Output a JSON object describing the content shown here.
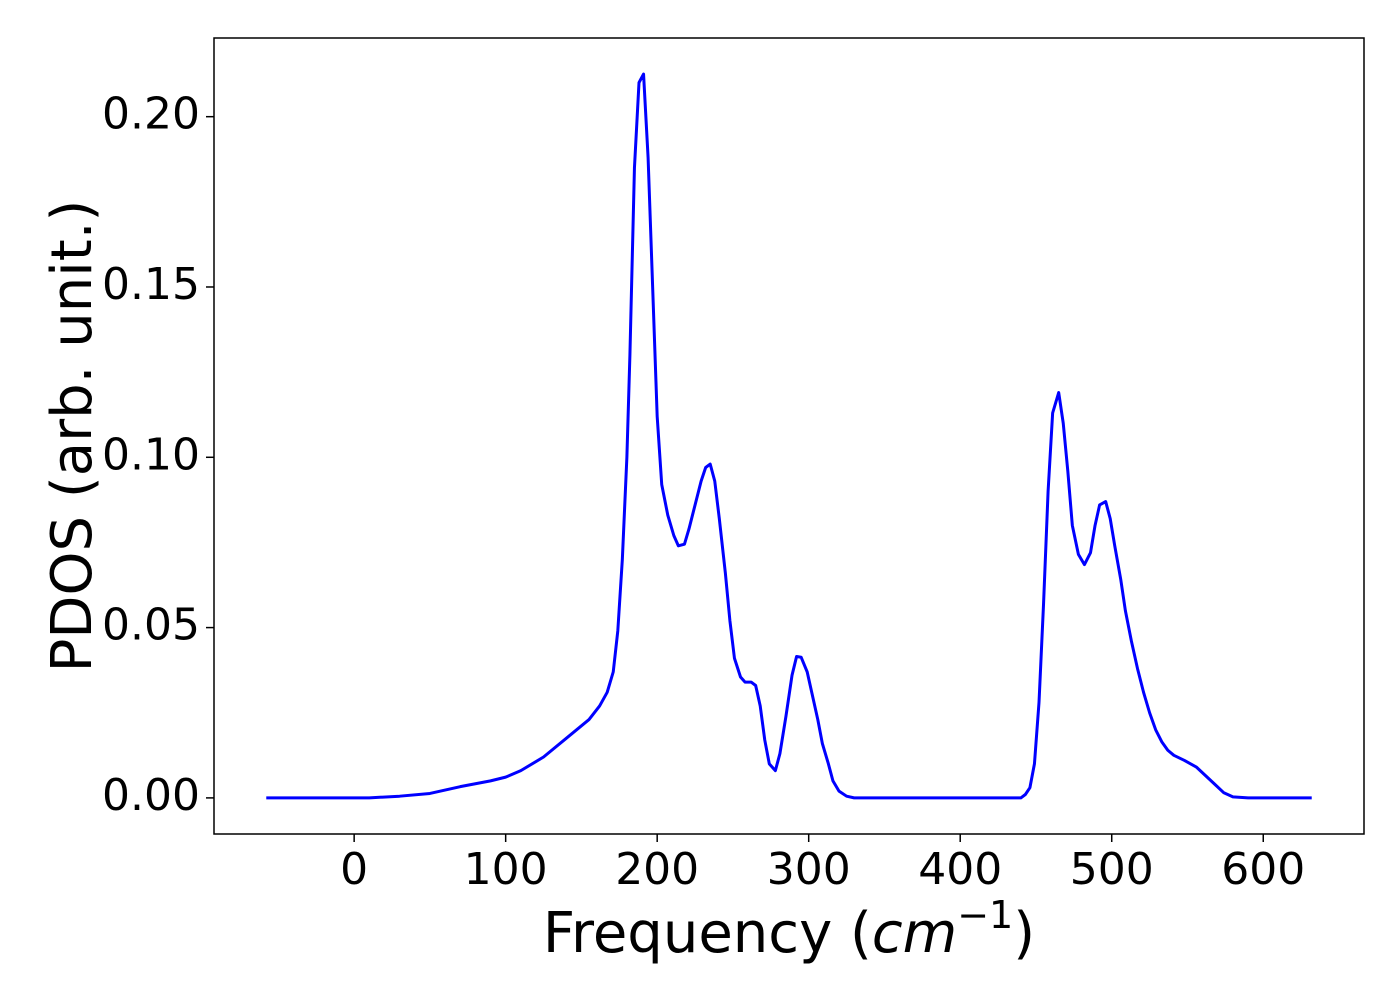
{
  "chart_data": {
    "type": "line",
    "xlabel": {
      "prefix": "Frequency (",
      "unit": "cm",
      "exponent": "−1",
      "suffix": ")"
    },
    "ylabel": "PDOS (arb. unit.)",
    "x": [
      -58,
      0,
      10,
      30,
      50,
      70,
      90,
      100,
      110,
      125,
      140,
      155,
      162,
      167,
      171,
      174,
      177,
      180,
      182,
      185,
      188,
      191,
      194,
      197,
      200,
      203,
      207,
      211,
      214,
      218,
      221,
      225,
      229,
      232,
      235,
      238,
      241,
      245,
      248,
      251,
      255,
      258,
      262,
      265,
      268,
      271,
      274,
      278,
      281,
      285,
      289,
      292,
      295,
      299,
      302,
      306,
      309,
      313,
      316,
      320,
      325,
      330,
      440,
      443,
      446,
      449,
      452,
      455,
      458,
      461,
      465,
      468,
      471,
      474,
      478,
      482,
      486,
      489,
      492,
      496,
      499,
      502,
      506,
      509,
      513,
      517,
      521,
      525,
      529,
      533,
      537,
      541,
      548,
      556,
      562,
      568,
      574,
      580,
      590,
      632
    ],
    "series": [
      {
        "color": "#0000ff",
        "values": [
          0,
          0,
          0,
          0.0005,
          0.0013,
          0.0033,
          0.005,
          0.0061,
          0.008,
          0.012,
          0.0175,
          0.023,
          0.027,
          0.031,
          0.037,
          0.049,
          0.07,
          0.1,
          0.13,
          0.185,
          0.21,
          0.2125,
          0.188,
          0.15,
          0.112,
          0.092,
          0.083,
          0.077,
          0.074,
          0.0745,
          0.079,
          0.086,
          0.093,
          0.097,
          0.098,
          0.093,
          0.082,
          0.066,
          0.052,
          0.041,
          0.0355,
          0.034,
          0.034,
          0.033,
          0.027,
          0.017,
          0.01,
          0.008,
          0.013,
          0.024,
          0.036,
          0.0415,
          0.0413,
          0.037,
          0.031,
          0.023,
          0.016,
          0.01,
          0.005,
          0.002,
          0.0005,
          0,
          0,
          0.001,
          0.003,
          0.01,
          0.028,
          0.057,
          0.09,
          0.113,
          0.119,
          0.11,
          0.096,
          0.08,
          0.0715,
          0.0685,
          0.072,
          0.08,
          0.086,
          0.087,
          0.082,
          0.074,
          0.064,
          0.055,
          0.046,
          0.038,
          0.031,
          0.025,
          0.02,
          0.0165,
          0.014,
          0.0125,
          0.011,
          0.009,
          0.0065,
          0.004,
          0.0015,
          0.0003,
          0,
          0
        ]
      }
    ],
    "xlim": [
      -92.5,
      666.5
    ],
    "ylim": [
      -0.0106,
      0.2231
    ],
    "xticks": [
      0,
      100,
      200,
      300,
      400,
      500,
      600
    ],
    "yticks": [
      {
        "value": 0,
        "label": "0.00"
      },
      {
        "value": 0.05,
        "label": "0.05"
      },
      {
        "value": 0.1,
        "label": "0.10"
      },
      {
        "value": 0.15,
        "label": "0.15"
      },
      {
        "value": 0.2,
        "label": "0.20"
      }
    ]
  }
}
